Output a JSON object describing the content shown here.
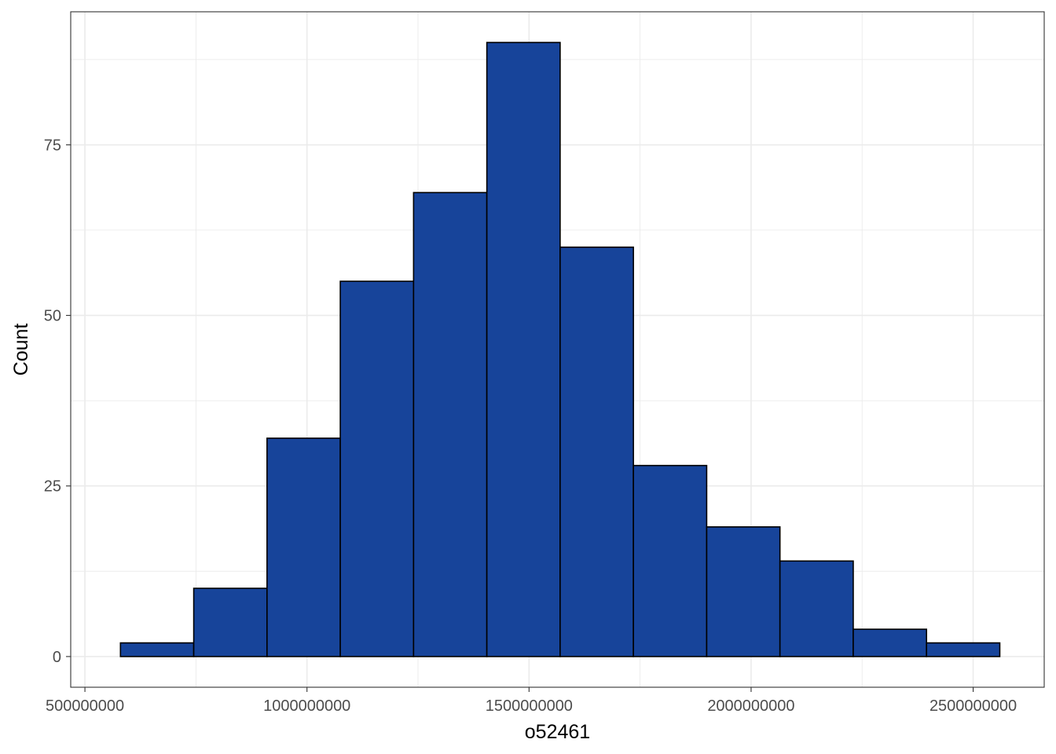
{
  "chart_data": {
    "type": "bar",
    "subtype": "histogram",
    "title": "",
    "xlabel": "o52461",
    "ylabel": "Count",
    "xlim": [
      468000000,
      2660000000
    ],
    "ylim": [
      -4.5,
      94.5
    ],
    "x_ticks": [
      500000000,
      1000000000,
      1500000000,
      2000000000,
      2500000000
    ],
    "x_tick_labels": [
      "500000000",
      "1000000000",
      "1500000000",
      "2000000000",
      "2500000000"
    ],
    "y_ticks": [
      0,
      25,
      50,
      75
    ],
    "y_tick_labels": [
      "0",
      "25",
      "50",
      "75"
    ],
    "bin_edges": [
      580000000,
      745000000,
      910000000,
      1075000000,
      1240000000,
      1405000000,
      1570000000,
      1735000000,
      1900000000,
      2065000000,
      2230000000,
      2395000000,
      2560000000
    ],
    "counts": [
      2,
      10,
      32,
      55,
      68,
      90,
      60,
      28,
      19,
      14,
      4,
      2
    ],
    "grid": true,
    "legend": "none",
    "colors": {
      "fill": "#17449A",
      "outline": "#000000",
      "grid": "#EBEBEB",
      "panel_border": "#333333"
    }
  }
}
